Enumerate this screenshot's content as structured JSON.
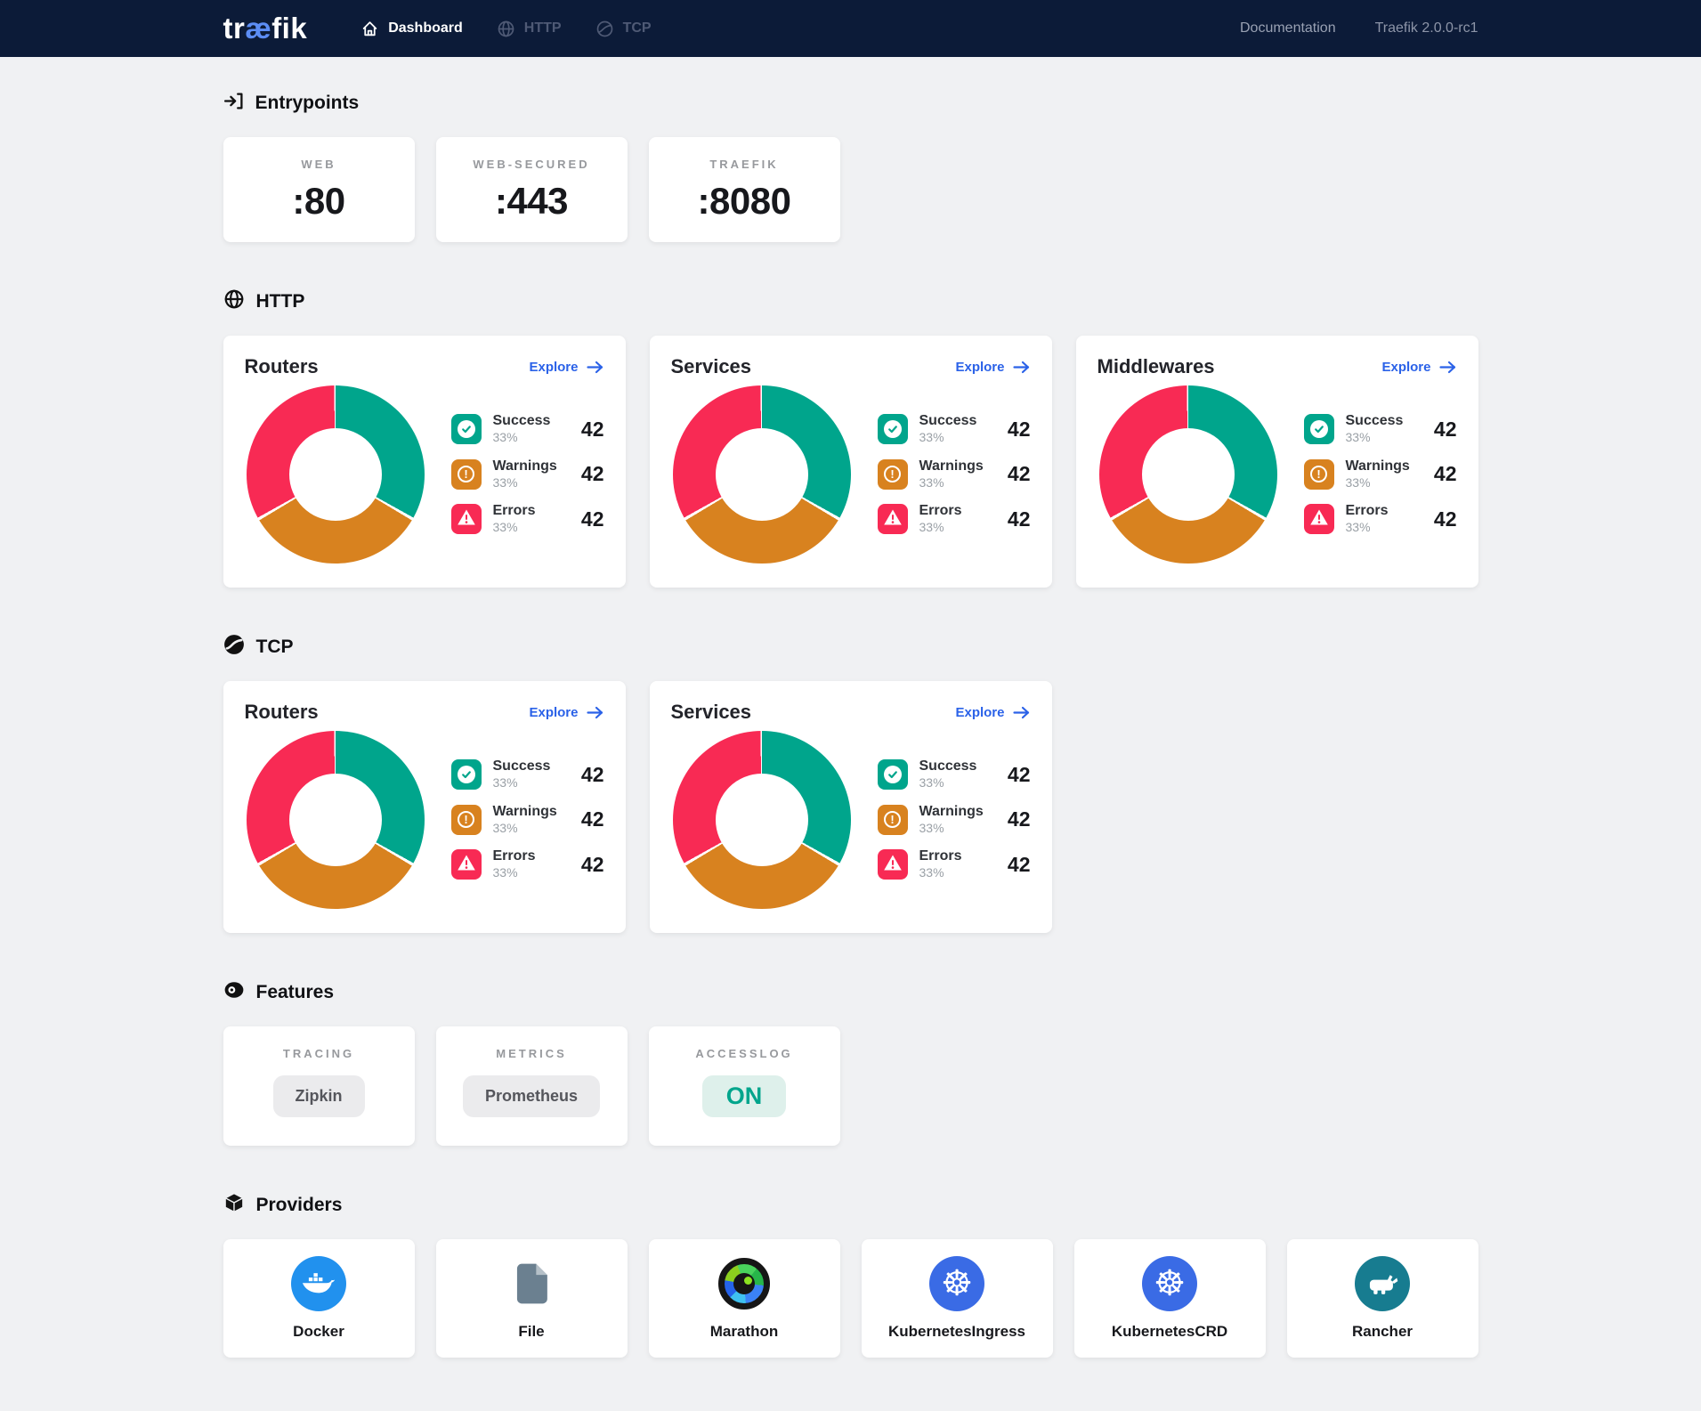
{
  "colors": {
    "success": "#00a58c",
    "warning": "#d8821f",
    "error": "#f82a54",
    "accent_link": "#2b62e8",
    "navbar_bg": "#0c1b38",
    "page_bg": "#f0f1f3",
    "logo_ae": "#5c8df5",
    "docker_blue": "#2191ee",
    "kubernetes_blue": "#3a6be5",
    "rancher_teal": "#177c90",
    "file_slate": "#6b8090",
    "on_pill_bg": "#def0eb"
  },
  "navbar": {
    "logo": {
      "prefix": "tr",
      "mid": "æ",
      "suffix": "fik"
    },
    "items": [
      {
        "label": "Dashboard",
        "icon": "home-icon",
        "active": true
      },
      {
        "label": "HTTP",
        "icon": "globe-icon",
        "active": false
      },
      {
        "label": "TCP",
        "icon": "tcp-icon",
        "active": false
      }
    ],
    "doc_link": "Documentation",
    "version": "Traefik 2.0.0-rc1"
  },
  "entrypoints": {
    "title": "Entrypoints",
    "cards": [
      {
        "label": "WEB",
        "value": ":80"
      },
      {
        "label": "WEB-SECURED",
        "value": ":443"
      },
      {
        "label": "TRAEFIK",
        "value": ":8080"
      }
    ]
  },
  "http": {
    "title": "HTTP",
    "cards": [
      {
        "title": "Routers",
        "explore": "Explore"
      },
      {
        "title": "Services",
        "explore": "Explore"
      },
      {
        "title": "Middlewares",
        "explore": "Explore"
      }
    ]
  },
  "tcp": {
    "title": "TCP",
    "cards": [
      {
        "title": "Routers",
        "explore": "Explore"
      },
      {
        "title": "Services",
        "explore": "Explore"
      }
    ]
  },
  "donut_stats": [
    {
      "label": "Success",
      "pct": "33%",
      "value": "42",
      "color": "#00a58c",
      "icon": "check-circle-icon"
    },
    {
      "label": "Warnings",
      "pct": "33%",
      "value": "42",
      "color": "#d8821f",
      "icon": "exclamation-circle-icon"
    },
    {
      "label": "Errors",
      "pct": "33%",
      "value": "42",
      "color": "#f82a54",
      "icon": "warning-triangle-icon"
    }
  ],
  "chart_data": {
    "type": "pie",
    "note": "donut repeated on every Routers/Services/Middlewares card",
    "segments": [
      {
        "label": "Success",
        "pct": 33.33,
        "count": 42
      },
      {
        "label": "Warnings",
        "pct": 33.33,
        "count": 42
      },
      {
        "label": "Errors",
        "pct": 33.33,
        "count": 42
      }
    ]
  },
  "features": {
    "title": "Features",
    "cards": [
      {
        "label": "TRACING",
        "value": "Zipkin",
        "state": "neutral"
      },
      {
        "label": "METRICS",
        "value": "Prometheus",
        "state": "neutral"
      },
      {
        "label": "ACCESSLOG",
        "value": "ON",
        "state": "on"
      }
    ]
  },
  "providers": {
    "title": "Providers",
    "cards": [
      {
        "label": "Docker",
        "icon": "docker-icon"
      },
      {
        "label": "File",
        "icon": "file-icon"
      },
      {
        "label": "Marathon",
        "icon": "marathon-icon"
      },
      {
        "label": "KubernetesIngress",
        "icon": "kubernetes-icon"
      },
      {
        "label": "KubernetesCRD",
        "icon": "kubernetes-icon"
      },
      {
        "label": "Rancher",
        "icon": "rancher-icon"
      }
    ]
  }
}
